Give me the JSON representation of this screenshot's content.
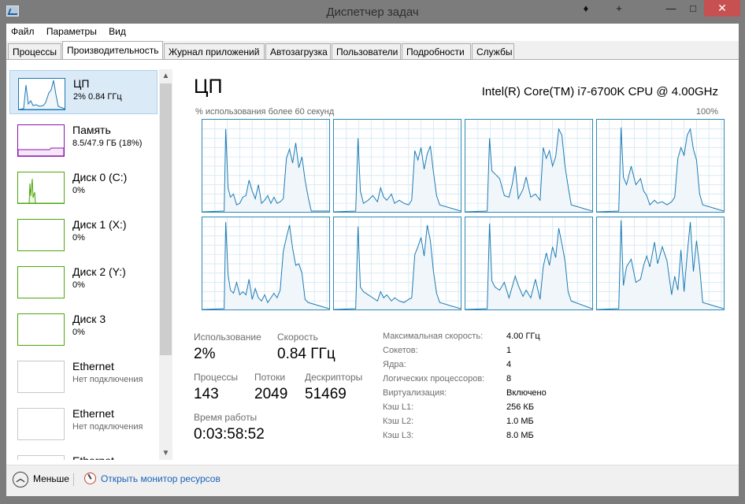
{
  "window": {
    "title": "Диспетчер задач",
    "buttons": {
      "pin": "♦",
      "move": "+",
      "minimize": "—",
      "maximize": "□",
      "close": "✕"
    }
  },
  "menu": [
    "Файл",
    "Параметры",
    "Вид"
  ],
  "tabs": [
    "Процессы",
    "Производительность",
    "Журнал приложений",
    "Автозагрузка",
    "Пользователи",
    "Подробности",
    "Службы"
  ],
  "active_tab": 1,
  "sidebar": {
    "items": [
      {
        "name": "ЦП",
        "sub": "2% 0.84 ГГц",
        "color": "#1a7ab5",
        "fill": "#f1f6fa",
        "active": true
      },
      {
        "name": "Память",
        "sub": "8.5/47.9 ГБ (18%)",
        "color": "#8b12ae",
        "fill": "#f4e8f6"
      },
      {
        "name": "Диск 0 (C:)",
        "sub": "0%",
        "color": "#4da60c",
        "fill": "#eff7e6"
      },
      {
        "name": "Диск 1 (X:)",
        "sub": "0%",
        "color": "#4da60c",
        "fill": "#eff7e6"
      },
      {
        "name": "Диск 2 (Y:)",
        "sub": "0%",
        "color": "#4da60c",
        "fill": "#eff7e6"
      },
      {
        "name": "Диск 3",
        "sub": "0%",
        "color": "#4da60c",
        "fill": "#eff7e6"
      },
      {
        "name": "Ethernet",
        "sub": "Нет подключения",
        "color": "#c8c8c8",
        "fill": "#f4f4f4"
      },
      {
        "name": "Ethernet",
        "sub": "Нет подключения",
        "color": "#c8c8c8",
        "fill": "#f4f4f4"
      },
      {
        "name": "Ethernet",
        "sub": "",
        "color": "#c8c8c8",
        "fill": "#f4f4f4"
      }
    ]
  },
  "main": {
    "title": "ЦП",
    "cpu_name": "Intel(R) Core(TM) i7-6700K CPU @ 4.00GHz",
    "graph_caption": "% использования более 60 секунд",
    "graph_max": "100%",
    "graph_color": "#1a7ab5",
    "graph_fill": "#f1f6fa",
    "stats": {
      "usage_label": "Использование",
      "usage_value": "2%",
      "speed_label": "Скорость",
      "speed_value": "0.84 ГГц",
      "processes_label": "Процессы",
      "processes_value": "143",
      "threads_label": "Потоки",
      "threads_value": "2049",
      "handles_label": "Дескрипторы",
      "handles_value": "51469",
      "uptime_label": "Время работы",
      "uptime_value": "0:03:58:52"
    },
    "specs": [
      {
        "label": "Максимальная скорость:",
        "value": "4.00 ГГц"
      },
      {
        "label": "Сокетов:",
        "value": "1"
      },
      {
        "label": "Ядра:",
        "value": "4"
      },
      {
        "label": "Логических процессоров:",
        "value": "8"
      },
      {
        "label": "Виртуализация:",
        "value": "Включено"
      },
      {
        "label": "Кэш L1:",
        "value": "256 КБ"
      },
      {
        "label": "Кэш L2:",
        "value": "1.0 МБ"
      },
      {
        "label": "Кэш L3:",
        "value": "8.0 МБ"
      }
    ]
  },
  "footer": {
    "collapse_label": "Меньше",
    "monitor_link": "Открыть монитор ресурсов"
  }
}
